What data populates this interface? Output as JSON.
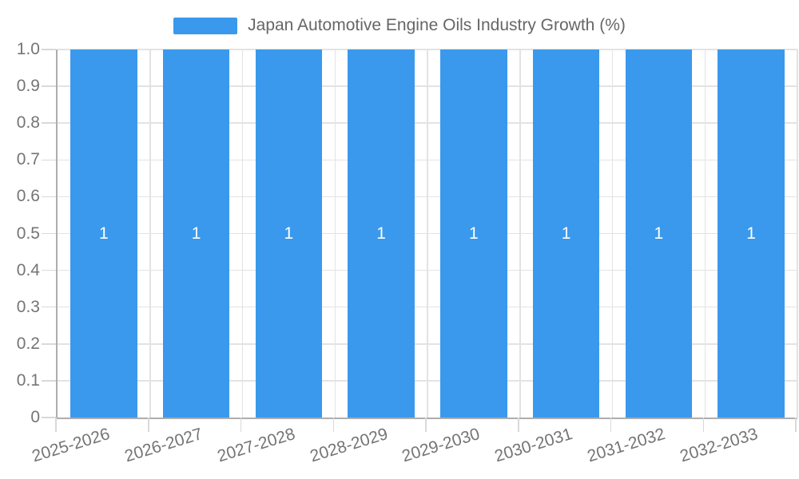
{
  "legend": {
    "label": "Japan Automotive Engine Oils Industry Growth (%)"
  },
  "chart_data": {
    "type": "bar",
    "title": "Japan Automotive Engine Oils Industry Growth (%)",
    "categories": [
      "2025-2026",
      "2026-2027",
      "2027-2028",
      "2028-2029",
      "2029-2030",
      "2030-2031",
      "2031-2032",
      "2032-2033"
    ],
    "series": [
      {
        "name": "Japan Automotive Engine Oils Industry Growth (%)",
        "values": [
          1,
          1,
          1,
          1,
          1,
          1,
          1,
          1
        ]
      }
    ],
    "value_labels": [
      "1",
      "1",
      "1",
      "1",
      "1",
      "1",
      "1",
      "1"
    ],
    "y_ticks": [
      "0",
      "0.1",
      "0.2",
      "0.3",
      "0.4",
      "0.5",
      "0.6",
      "0.7",
      "0.8",
      "0.9",
      "1.0"
    ],
    "ylim": [
      0,
      1
    ],
    "xlabel": "",
    "ylabel": "",
    "grid": true,
    "legend_position": "top"
  },
  "colors": {
    "bar": "#3A99EC",
    "bar_value_label": "#FFFFFF",
    "gridline": "#E3E3E3",
    "axis_line": "#ADADAD",
    "tick_mark": "#D9D9D9",
    "tick_text": "#757575",
    "legend_text": "#666666",
    "background": "#FFFFFF"
  }
}
